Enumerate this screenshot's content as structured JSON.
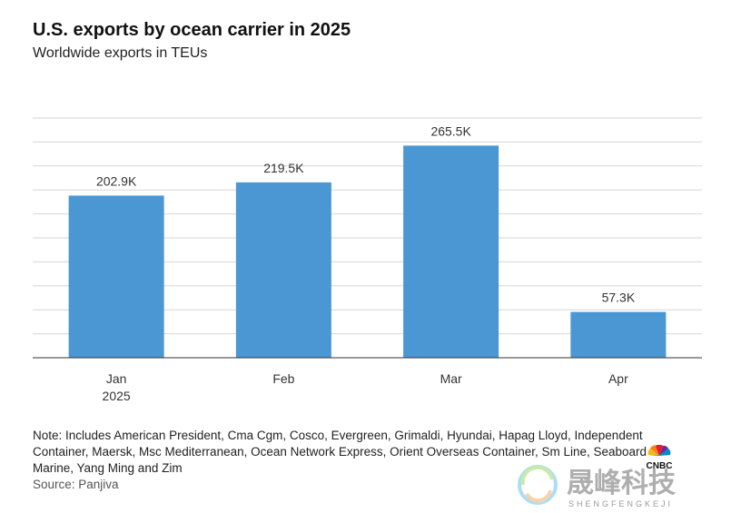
{
  "header": {
    "title": "U.S. exports by ocean carrier in 2025",
    "subtitle": "Worldwide exports in TEUs"
  },
  "chart_data": {
    "type": "bar",
    "categories": [
      "Jan\n2025",
      "Feb",
      "Mar",
      "Apr"
    ],
    "values": [
      202.9,
      219.5,
      265.5,
      57.3
    ],
    "value_labels": [
      "202.9K",
      "219.5K",
      "265.5K",
      "57.3K"
    ],
    "units": "K TEUs",
    "ylim": [
      0,
      300
    ],
    "grid": true,
    "bar_color": "#4a97d4",
    "title": "U.S. exports by ocean carrier in 2025",
    "subtitle": "Worldwide exports in TEUs"
  },
  "footer": {
    "note": "Note: Includes American President, Cma Cgm, Cosco, Evergreen, Grimaldi, Hyundai, Hapag Lloyd, Independent Container, Maersk, Msc Mediterranean, Ocean Network Express, Orient Overseas Container, Sm Line, Seaboard Marine, Yang Ming and Zim",
    "source": "Source: Panjiva"
  },
  "watermark": {
    "logo": "CNBC",
    "brand_cn": "晟峰科技",
    "brand_en": "SHENGFENGKEJI"
  }
}
